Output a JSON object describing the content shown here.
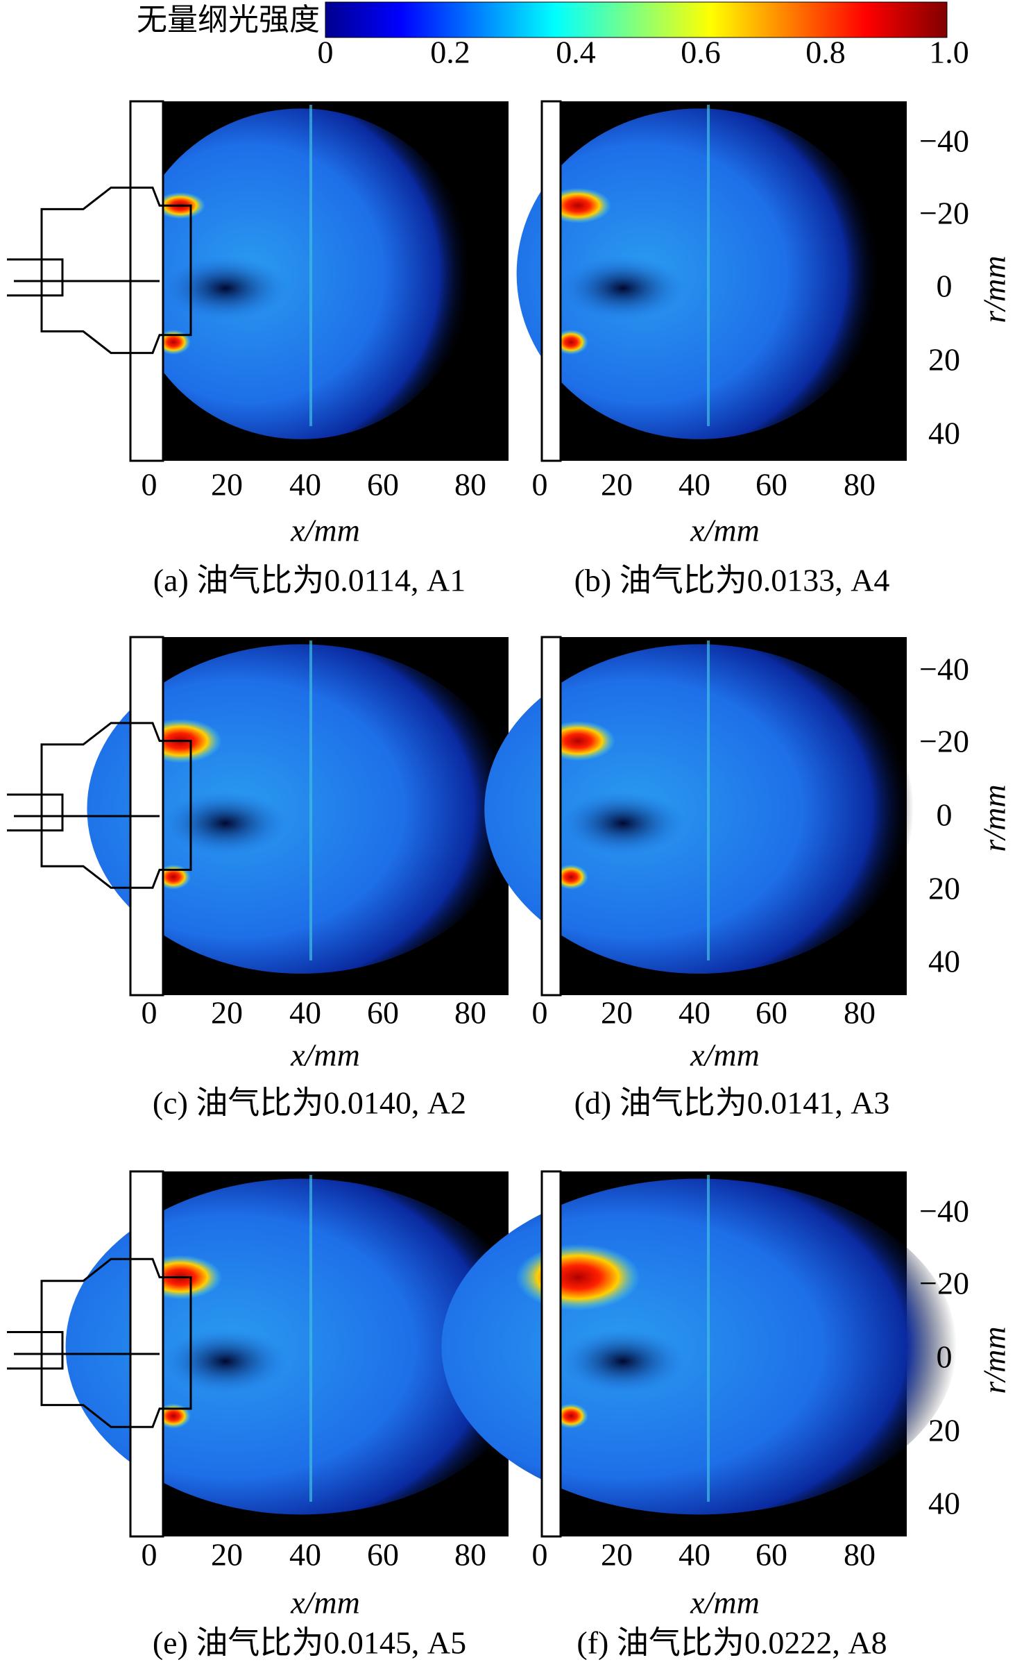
{
  "colorbar": {
    "label": "无量纲光强度",
    "ticks": [
      "0",
      "0.2",
      "0.4",
      "0.6",
      "0.8",
      "1.0"
    ]
  },
  "panels": [
    {
      "caption": "(a) 油气比为0.0114, A1",
      "x_ticks": [
        "0",
        "20",
        "40",
        "60",
        "80"
      ],
      "x_label": "x/mm"
    },
    {
      "caption": "(b) 油气比为0.0133, A4",
      "x_ticks": [
        "0",
        "20",
        "40",
        "60",
        "80"
      ],
      "x_label": "x/mm"
    },
    {
      "caption": "(c) 油气比为0.0140, A2",
      "x_ticks": [
        "0",
        "20",
        "40",
        "60",
        "80"
      ],
      "x_label": "x/mm"
    },
    {
      "caption": "(d) 油气比为0.0141, A3",
      "x_ticks": [
        "0",
        "20",
        "40",
        "60",
        "80"
      ],
      "x_label": "x/mm"
    },
    {
      "caption": "(e) 油气比为0.0145, A5",
      "x_ticks": [
        "0",
        "20",
        "40",
        "60",
        "80"
      ],
      "x_label": "x/mm"
    },
    {
      "caption": "(f) 油气比为0.0222, A8",
      "x_ticks": [
        "0",
        "20",
        "40",
        "60",
        "80"
      ],
      "x_label": "x/mm"
    }
  ],
  "rows": [
    {
      "y_ticks": [
        "−40",
        "−20",
        "0",
        "20",
        "40"
      ],
      "y_label": "r/mm"
    },
    {
      "y_ticks": [
        "−40",
        "−20",
        "0",
        "20",
        "40"
      ],
      "y_label": "r/mm"
    },
    {
      "y_ticks": [
        "−40",
        "−20",
        "0",
        "20",
        "40"
      ],
      "y_label": "r/mm"
    }
  ]
}
